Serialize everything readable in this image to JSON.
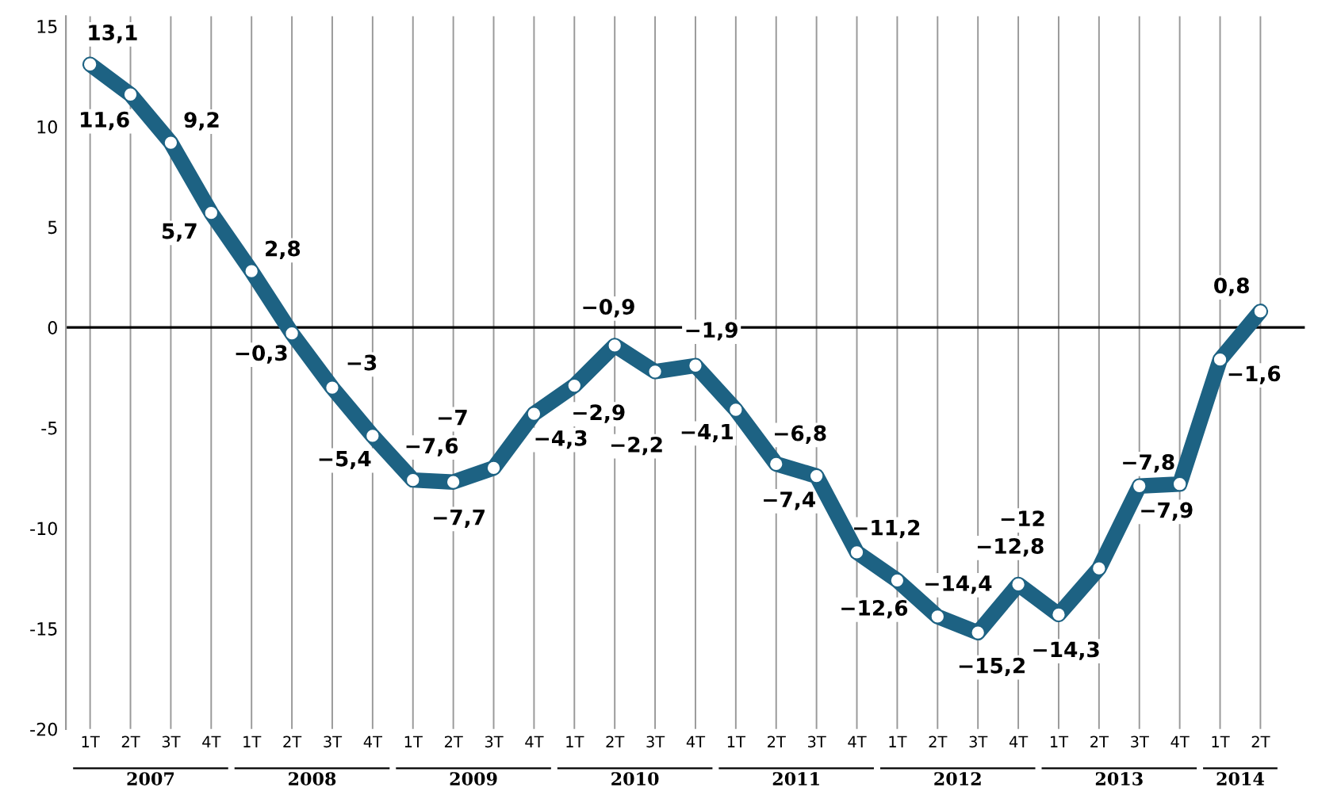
{
  "chart_data": {
    "type": "line",
    "categories": [
      "1T",
      "2T",
      "3T",
      "4T",
      "1T",
      "2T",
      "3T",
      "4T",
      "1T",
      "2T",
      "3T",
      "4T",
      "1T",
      "2T",
      "3T",
      "4T",
      "1T",
      "2T",
      "3T",
      "4T",
      "1T",
      "2T",
      "3T",
      "4T",
      "1T",
      "2T",
      "3T",
      "4T",
      "1T",
      "2T"
    ],
    "series": [
      {
        "color": "#1d6283",
        "values": [
          13.1,
          11.6,
          9.2,
          5.7,
          2.8,
          -0.3,
          -3,
          -5.4,
          -7.6,
          -7.7,
          -7,
          -4.3,
          -2.9,
          -0.9,
          -2.2,
          -1.9,
          -4.1,
          -6.8,
          -7.4,
          -11.2,
          -12.6,
          -14.4,
          -15.2,
          -12.8,
          -14.3,
          -12,
          -7.9,
          -7.8,
          -1.6,
          0.8
        ]
      }
    ],
    "value_labels": [
      "13,1",
      "11,6",
      "9,2",
      "5,7",
      "2,8",
      "−0,3",
      "−3",
      "−5,4",
      "−7,6",
      "−7,7",
      "−7",
      "−4,3",
      "−2,9",
      "−0,9",
      "−2,2",
      "−1,9",
      "−4,1",
      "−6,8",
      "−7,4",
      "−11,2",
      "−12,6",
      "−14,4",
      "−15,2",
      "−12,8",
      "−14,3",
      "−12",
      "−7,9",
      "−7,8",
      "−1,6",
      "0,8"
    ],
    "annotations": [
      "2007",
      "2008",
      "2009",
      "2010",
      "2011",
      "2012",
      "2013",
      "2014"
    ],
    "ylim": [
      -20,
      15.5
    ],
    "yticks": [
      -20,
      -15,
      -10,
      -5,
      0,
      5,
      10,
      15
    ],
    "ref_lines": [
      {
        "axis": "y",
        "value": 0,
        "color": "#000000"
      }
    ],
    "grid": "x",
    "marker": "circle",
    "line_style": "solid"
  }
}
